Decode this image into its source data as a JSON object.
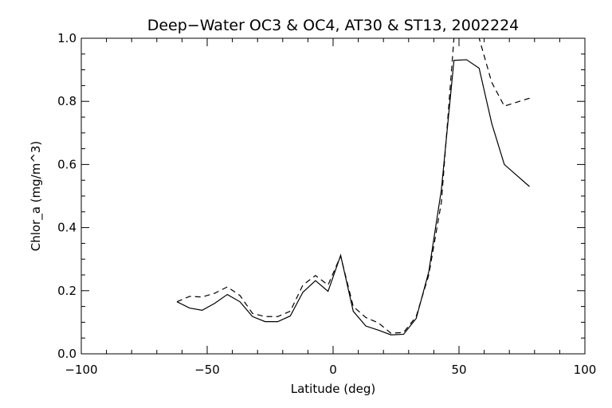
{
  "chart_data": {
    "type": "line",
    "title": "Deep−Water OC3 & OC4, AT30 & ST13, 2002224",
    "xlabel": "Latitude (deg)",
    "ylabel": "Chlor_a (mg/m^3)",
    "xlim": [
      -100,
      100
    ],
    "ylim": [
      0.0,
      1.0
    ],
    "xticks": [
      -100,
      -50,
      0,
      50,
      100
    ],
    "xtick_labels": [
      "−100",
      "−50",
      "0",
      "50",
      "100"
    ],
    "yticks": [
      0.0,
      0.2,
      0.4,
      0.6,
      0.8,
      1.0
    ],
    "ytick_labels": [
      "0.0",
      "0.2",
      "0.4",
      "0.6",
      "0.8",
      "1.0"
    ],
    "grid": false,
    "series": [
      {
        "style": "solid",
        "color": "#000000",
        "points": [
          [
            -62,
            0.165
          ],
          [
            -57,
            0.145
          ],
          [
            -52,
            0.138
          ],
          [
            -47,
            0.16
          ],
          [
            -42,
            0.188
          ],
          [
            -37,
            0.165
          ],
          [
            -32,
            0.118
          ],
          [
            -27,
            0.102
          ],
          [
            -22,
            0.102
          ],
          [
            -17,
            0.12
          ],
          [
            -12,
            0.195
          ],
          [
            -7,
            0.232
          ],
          [
            -2,
            0.198
          ],
          [
            3,
            0.312
          ],
          [
            8,
            0.135
          ],
          [
            13,
            0.088
          ],
          [
            18,
            0.075
          ],
          [
            23,
            0.06
          ],
          [
            28,
            0.062
          ],
          [
            33,
            0.112
          ],
          [
            38,
            0.26
          ],
          [
            43,
            0.52
          ],
          [
            48,
            0.93
          ],
          [
            53,
            0.932
          ],
          [
            58,
            0.905
          ],
          [
            63,
            0.73
          ],
          [
            68,
            0.6
          ],
          [
            78,
            0.53
          ]
        ]
      },
      {
        "style": "dashed",
        "color": "#000000",
        "points": [
          [
            -62,
            0.165
          ],
          [
            -57,
            0.182
          ],
          [
            -52,
            0.18
          ],
          [
            -47,
            0.192
          ],
          [
            -42,
            0.212
          ],
          [
            -37,
            0.185
          ],
          [
            -32,
            0.128
          ],
          [
            -27,
            0.118
          ],
          [
            -22,
            0.118
          ],
          [
            -17,
            0.135
          ],
          [
            -12,
            0.218
          ],
          [
            -7,
            0.248
          ],
          [
            -2,
            0.218
          ],
          [
            3,
            0.31
          ],
          [
            8,
            0.15
          ],
          [
            13,
            0.115
          ],
          [
            18,
            0.098
          ],
          [
            23,
            0.065
          ],
          [
            28,
            0.068
          ],
          [
            33,
            0.118
          ],
          [
            38,
            0.25
          ],
          [
            43,
            0.48
          ],
          [
            48,
            1.0
          ],
          [
            53,
            1.06
          ],
          [
            58,
            1.0
          ],
          [
            63,
            0.86
          ],
          [
            68,
            0.785
          ],
          [
            78,
            0.81
          ]
        ]
      }
    ]
  }
}
